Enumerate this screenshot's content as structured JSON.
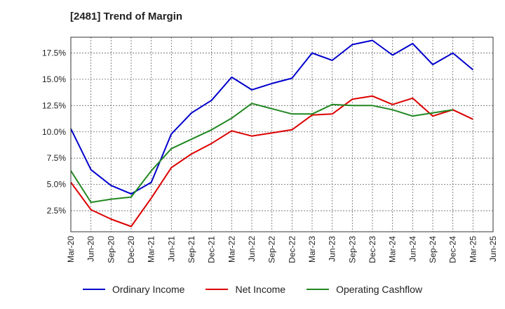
{
  "chart_data": {
    "type": "line",
    "title": "[2481]  Trend of Margin",
    "xlabel": "",
    "ylabel": "",
    "x": [
      "Mar-20",
      "Jun-20",
      "Sep-20",
      "Dec-20",
      "Mar-21",
      "Jun-21",
      "Sep-21",
      "Dec-21",
      "Mar-22",
      "Jun-22",
      "Sep-22",
      "Dec-22",
      "Mar-23",
      "Jun-23",
      "Sep-23",
      "Dec-23",
      "Mar-24",
      "Jun-24",
      "Sep-24",
      "Dec-24",
      "Mar-25",
      "Jun-25"
    ],
    "ylim": [
      0.5,
      19
    ],
    "yticks": [
      2.5,
      5.0,
      7.5,
      10.0,
      12.5,
      15.0,
      17.5
    ],
    "ytick_labels": [
      "2.5%",
      "5.0%",
      "7.5%",
      "10.0%",
      "12.5%",
      "15.0%",
      "17.5%"
    ],
    "grid": true,
    "legend_position": "bottom",
    "series": [
      {
        "name": "Ordinary Income",
        "color": "#0000cc",
        "values": [
          10.3,
          6.4,
          4.9,
          4.1,
          5.2,
          9.8,
          11.8,
          13.0,
          15.2,
          14.0,
          14.6,
          15.1,
          17.5,
          16.8,
          18.3,
          18.7,
          17.3,
          18.4,
          16.4,
          17.5,
          15.9,
          null
        ]
      },
      {
        "name": "Net Income",
        "color": "#dd0000",
        "values": [
          5.2,
          2.6,
          1.7,
          1.0,
          3.7,
          6.6,
          7.9,
          8.9,
          10.1,
          9.6,
          9.9,
          10.2,
          11.6,
          11.7,
          13.1,
          13.4,
          12.6,
          13.2,
          11.5,
          12.1,
          11.2,
          null
        ]
      },
      {
        "name": "Operating Cashflow",
        "color": "#228822",
        "values": [
          6.3,
          3.3,
          3.6,
          3.8,
          6.3,
          8.4,
          9.3,
          10.2,
          11.3,
          12.7,
          12.2,
          11.7,
          11.7,
          12.6,
          12.5,
          12.5,
          12.1,
          11.5,
          11.8,
          12.1,
          null,
          null
        ]
      }
    ]
  }
}
